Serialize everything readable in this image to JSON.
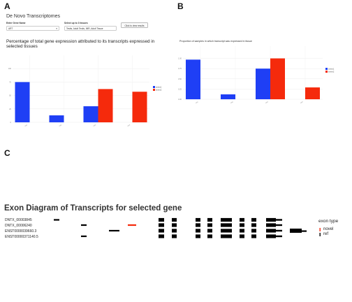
{
  "panels": {
    "a": "A",
    "b": "B",
    "c": "C"
  },
  "app": {
    "title": "De Novo Transcriptomes",
    "gene_label": "Enter Gene Name",
    "gene_value": "ART",
    "tissue_label": "Select up to 3 tissues",
    "tissue_value": "Testis, Adult Testis, IMR, Adult Tissue",
    "submit_label": "Click to view results"
  },
  "chart_a_title": "Percentage of total gene expression attributed to its transcripts expressed in selected tissues",
  "chart_b_title": "Proportion of samples in which transcript was expressed in tissue",
  "colors": {
    "blue": "#1f3ff5",
    "red": "#f52a0c",
    "black": "#000000"
  },
  "chart_data": [
    {
      "type": "bar",
      "title": "Percentage of total gene expression attributed to its transcripts expressed in selected tissues",
      "categories": [
        "cat1",
        "cat2",
        "cat3",
        "cat4"
      ],
      "series": [
        {
          "name": "series1",
          "color": "#1f3ff5",
          "values": [
            75,
            13,
            30,
            0
          ]
        },
        {
          "name": "series2",
          "color": "#f52a0c",
          "values": [
            0,
            0,
            62,
            57
          ]
        }
      ],
      "ylim": [
        0,
        125
      ],
      "yticks": [
        "0",
        "25",
        "50",
        "75",
        "100"
      ],
      "legend": "right",
      "grid": true
    },
    {
      "type": "bar",
      "title": "Proportion of samples in which transcript was expressed in tissue",
      "categories": [
        "cat1",
        "cat2",
        "cat3",
        "cat4"
      ],
      "series": [
        {
          "name": "series1",
          "color": "#1f3ff5",
          "values": [
            0.97,
            0.12,
            0.75,
            0
          ]
        },
        {
          "name": "series2",
          "color": "#f52a0c",
          "values": [
            0,
            0,
            1.0,
            0.29
          ]
        }
      ],
      "ylim": [
        0,
        1.3
      ],
      "yticks": [
        "0.00",
        "0.25",
        "0.50",
        "0.75",
        "1.00"
      ],
      "legend": "right",
      "grid": true
    }
  ],
  "diagram": {
    "title": "Exon Diagram of Transcripts for selected gene",
    "transcripts": [
      "DNTX_00003845",
      "DNTX_00006240",
      "ENST0000039660.3",
      "ENST00000371140.5"
    ],
    "legend_title": "exon type",
    "legend_items": [
      {
        "label": "novel",
        "color": "#f52a0c"
      },
      {
        "label": "ref",
        "color": "#000000"
      }
    ]
  }
}
